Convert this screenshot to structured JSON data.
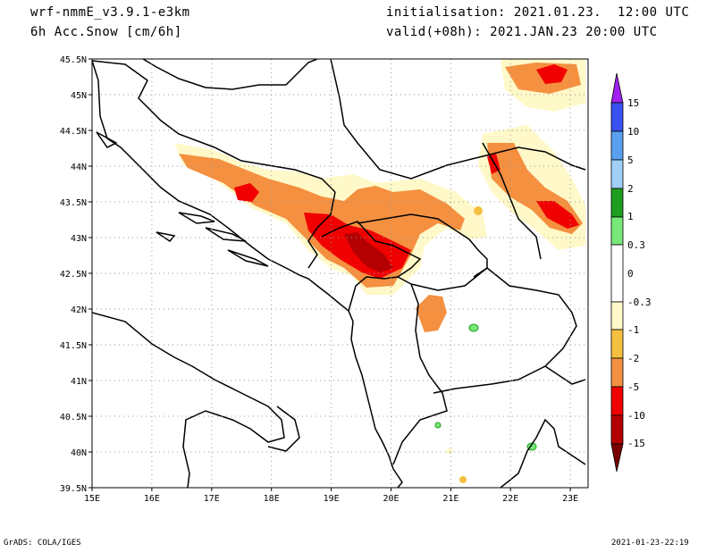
{
  "header": {
    "model": "wrf-nmmE_v3.9.1-e3km",
    "field": "6h Acc.Snow [cm/6h]",
    "init": "initialisation: 2021.01.23.  12:00 UTC",
    "valid": "valid(+08h): 2021.JAN.23 20:00 UTC"
  },
  "axes": {
    "lat_labels": [
      "45.5N",
      "45N",
      "44.5N",
      "44N",
      "43.5N",
      "43N",
      "42.5N",
      "42N",
      "41.5N",
      "41N",
      "40.5N",
      "40N",
      "39.5N"
    ],
    "lon_labels": [
      "15E",
      "16E",
      "17E",
      "18E",
      "19E",
      "20E",
      "21E",
      "22E",
      "23E"
    ],
    "lat_range": [
      39.5,
      45.5
    ],
    "lon_range": [
      15,
      23.3
    ]
  },
  "legend": {
    "labels": [
      "15",
      "10",
      "5",
      "2",
      "1",
      "0.3",
      "0",
      "-0.3",
      "-1",
      "-2",
      "-5",
      "-10",
      "-15"
    ],
    "colors": {
      "top_arrow": "#a020f0",
      "15_10": "#3a50f0",
      "10_5": "#5aa0f0",
      "5_2": "#a0d0f8",
      "2_1": "#1e9e1e",
      "1_0.3": "#78e878",
      "0.3_-0.3": "#ffffff",
      "-0.3_-1": "#fff8c8",
      "-1_-2": "#f4c040",
      "-2_-5": "#f49040",
      "-5_-10": "#f00000",
      "-10_-15": "#b40000",
      "bottom_arrow": "#780000"
    }
  },
  "footer": {
    "left": "GrADS: COLA/IGES",
    "right": "2021-01-23-22:19"
  }
}
